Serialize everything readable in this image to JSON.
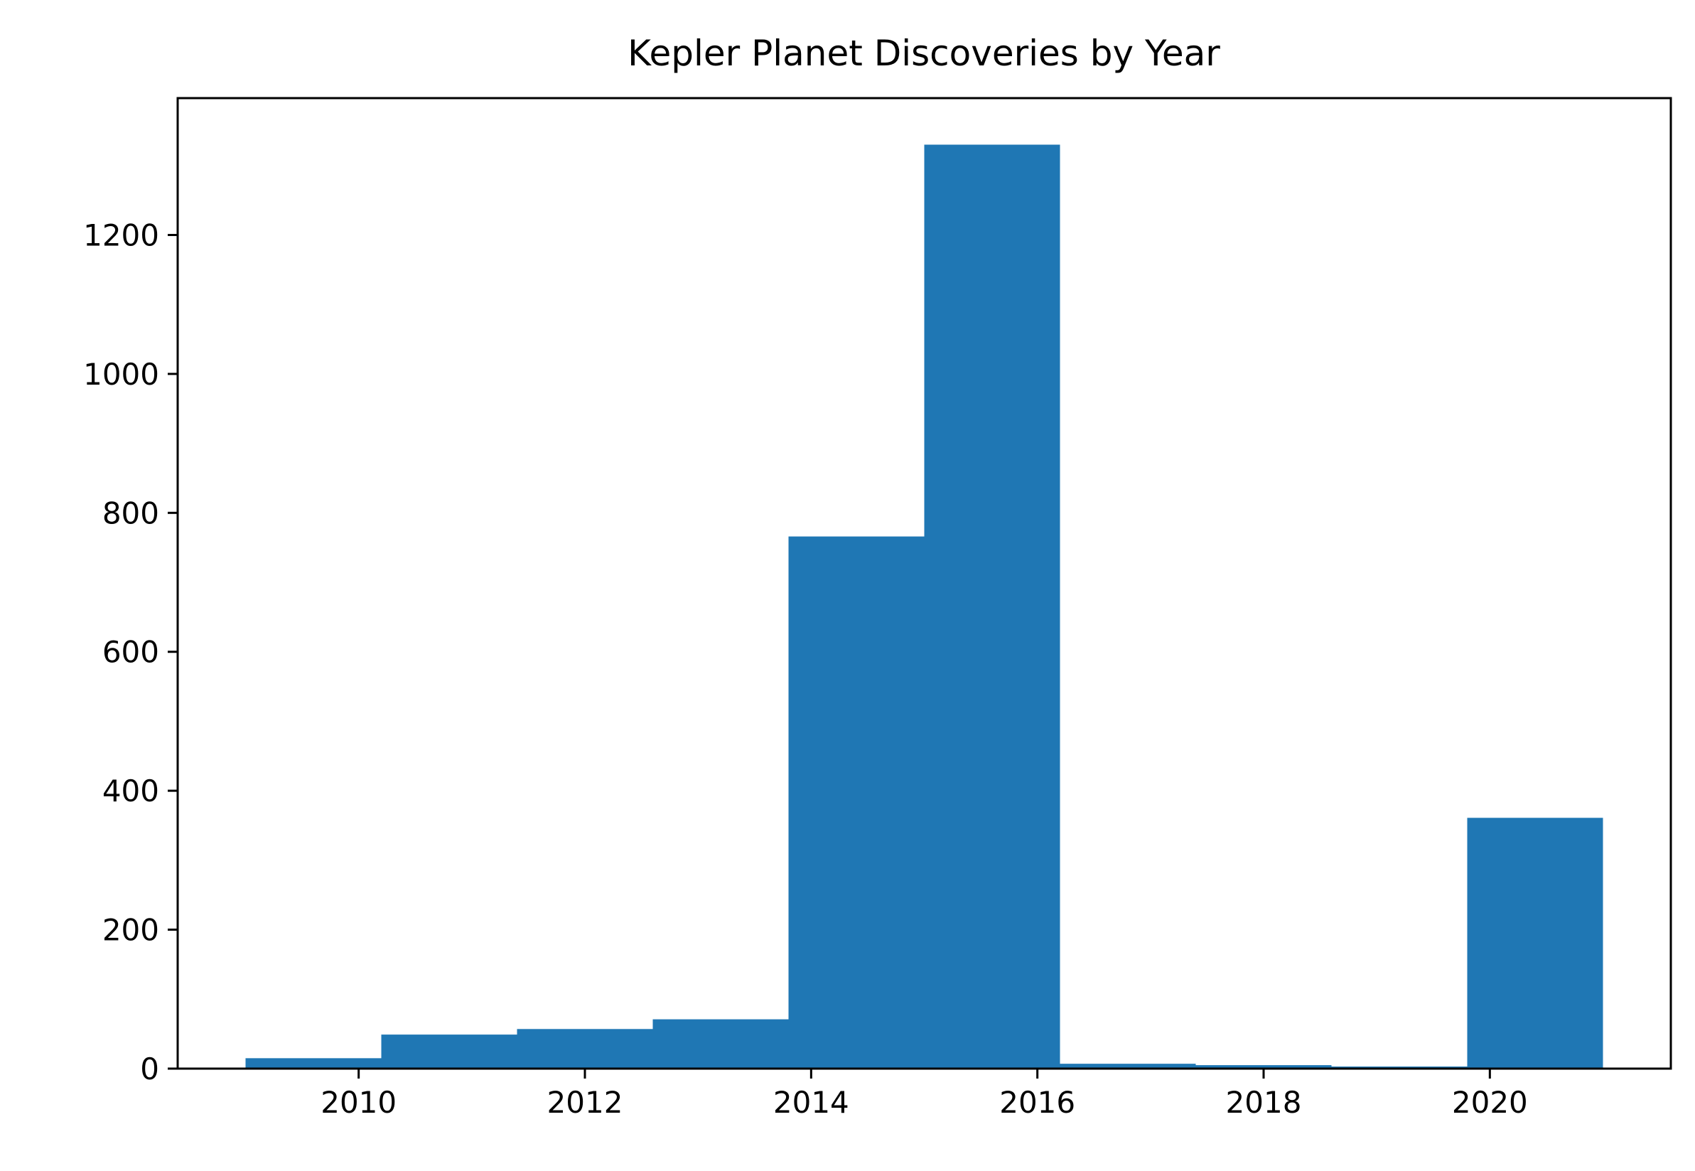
{
  "chart_data": {
    "type": "bar",
    "title": "Kepler Planet Discoveries by Year",
    "xlabel": "",
    "ylabel": "",
    "bins": [
      {
        "start": 2009.0,
        "end": 2010.2,
        "value": 15
      },
      {
        "start": 2010.2,
        "end": 2011.4,
        "value": 49
      },
      {
        "start": 2011.4,
        "end": 2012.6,
        "value": 57
      },
      {
        "start": 2012.6,
        "end": 2013.8,
        "value": 71
      },
      {
        "start": 2013.8,
        "end": 2015.0,
        "value": 766
      },
      {
        "start": 2015.0,
        "end": 2016.2,
        "value": 1330
      },
      {
        "start": 2016.2,
        "end": 2017.4,
        "value": 7
      },
      {
        "start": 2017.4,
        "end": 2018.6,
        "value": 5
      },
      {
        "start": 2018.6,
        "end": 2019.8,
        "value": 3
      },
      {
        "start": 2019.8,
        "end": 2021.0,
        "value": 361
      }
    ],
    "xlim": [
      2008.4,
      2021.6
    ],
    "ylim": [
      0,
      1397
    ],
    "xticks": [
      2010,
      2012,
      2014,
      2016,
      2018,
      2020
    ],
    "yticks": [
      0,
      200,
      400,
      600,
      800,
      1000,
      1200
    ],
    "bar_color": "#1f77b4",
    "grid": false,
    "legend": false
  }
}
